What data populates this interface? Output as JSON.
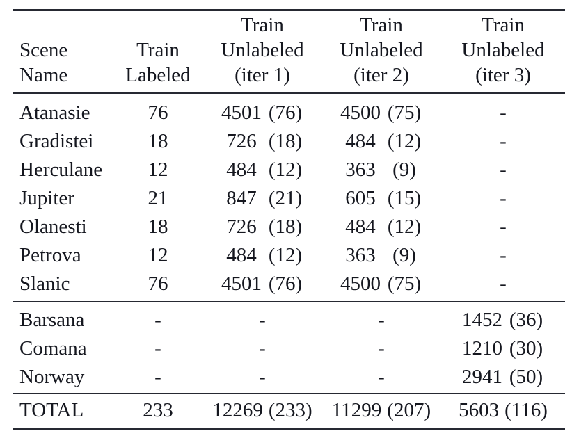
{
  "table": {
    "columns": [
      "Scene\nName",
      "Train\nLabeled",
      "Train\nUnlabeled\n(iter 1)",
      "Train\nUnlabeled\n(iter 2)",
      "Train\nUnlabeled\n(iter 3)"
    ],
    "rows": [
      {
        "name": "Atanasie",
        "labeled": "76",
        "iter1_num": "4501",
        "iter1_paren": "(76)",
        "iter2_num": "4500",
        "iter2_paren": "(75)",
        "iter3_dash": "-"
      },
      {
        "name": "Gradistei",
        "labeled": "18",
        "iter1_num": "726",
        "iter1_paren": "(18)",
        "iter2_num": "484",
        "iter2_paren": "(12)",
        "iter3_dash": "-"
      },
      {
        "name": "Herculane",
        "labeled": "12",
        "iter1_num": "484",
        "iter1_paren": "(12)",
        "iter2_num": "363",
        "iter2_paren": "(9)",
        "iter3_dash": "-"
      },
      {
        "name": "Jupiter",
        "labeled": "21",
        "iter1_num": "847",
        "iter1_paren": "(21)",
        "iter2_num": "605",
        "iter2_paren": "(15)",
        "iter3_dash": "-"
      },
      {
        "name": "Olanesti",
        "labeled": "18",
        "iter1_num": "726",
        "iter1_paren": "(18)",
        "iter2_num": "484",
        "iter2_paren": "(12)",
        "iter3_dash": "-"
      },
      {
        "name": "Petrova",
        "labeled": "12",
        "iter1_num": "484",
        "iter1_paren": "(12)",
        "iter2_num": "363",
        "iter2_paren": "(9)",
        "iter3_dash": "-"
      },
      {
        "name": "Slanic",
        "labeled": "76",
        "iter1_num": "4501",
        "iter1_paren": "(76)",
        "iter2_num": "4500",
        "iter2_paren": "(75)",
        "iter3_dash": "-"
      }
    ],
    "extra_rows": [
      {
        "name": "Barsana",
        "labeled_dash": "-",
        "iter1_dash": "-",
        "iter2_dash": "-",
        "iter3_num": "1452",
        "iter3_paren": "(36)"
      },
      {
        "name": "Comana",
        "labeled_dash": "-",
        "iter1_dash": "-",
        "iter2_dash": "-",
        "iter3_num": "1210",
        "iter3_paren": "(30)"
      },
      {
        "name": "Norway",
        "labeled_dash": "-",
        "iter1_dash": "-",
        "iter2_dash": "-",
        "iter3_num": "2941",
        "iter3_paren": "(50)"
      }
    ],
    "total_row": {
      "name": "TOTAL",
      "labeled": "233",
      "iter1_num": "12269",
      "iter1_paren": "(233)",
      "iter2_num": "11299",
      "iter2_paren": "(207)",
      "iter3_num": "5603",
      "iter3_paren": "(116)"
    }
  }
}
